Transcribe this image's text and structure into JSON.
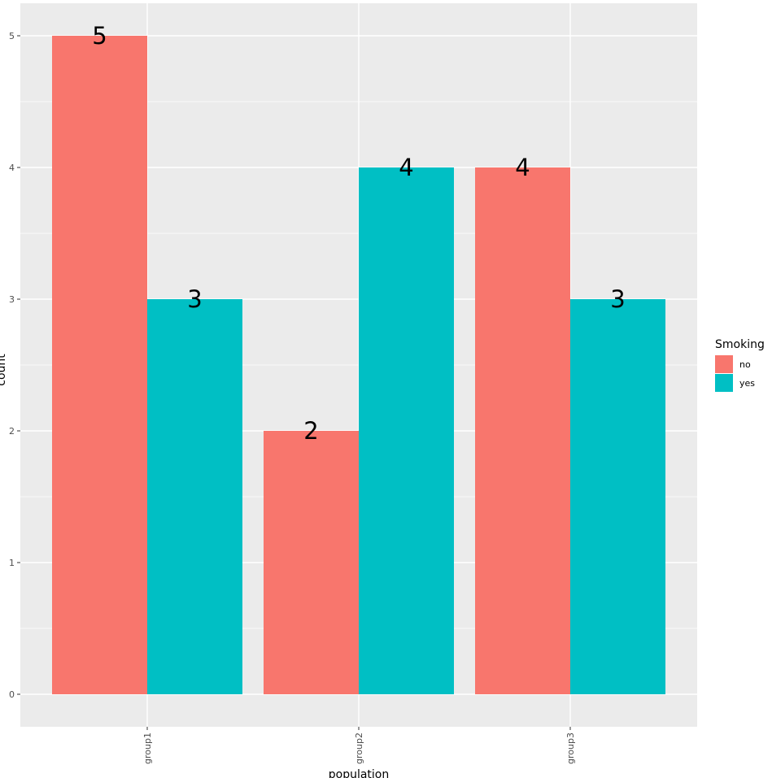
{
  "chart_data": {
    "type": "bar",
    "categories": [
      "group1",
      "group2",
      "group3"
    ],
    "series": [
      {
        "name": "no",
        "values": [
          5,
          2,
          4
        ],
        "color": "#F8766D"
      },
      {
        "name": "yes",
        "values": [
          3,
          4,
          3
        ],
        "color": "#00BFC4"
      }
    ],
    "xlabel": "population",
    "ylabel": "count",
    "ylim": [
      0,
      5
    ],
    "yticks": [
      0,
      1,
      2,
      3,
      4,
      5
    ],
    "grid": true,
    "legend": {
      "title": "Smoking",
      "position": "right"
    },
    "panel_color": "#EBEBEB",
    "grid_color": "#FFFFFF"
  }
}
